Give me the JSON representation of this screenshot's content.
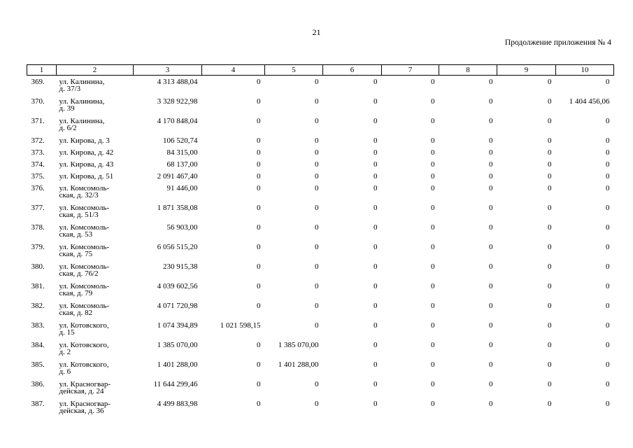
{
  "page": {
    "number": "21",
    "note": "Продолжение приложения № 4"
  },
  "table": {
    "headers": [
      "1",
      "2",
      "3",
      "4",
      "5",
      "6",
      "7",
      "8",
      "9",
      "10"
    ],
    "rows": [
      {
        "n": "369.",
        "addr": [
          "ул. Калинина,",
          "д. 37/3"
        ],
        "v": [
          "4 313 488,04",
          "0",
          "0",
          "0",
          "0",
          "0",
          "0",
          "0"
        ]
      },
      {
        "n": "370.",
        "addr": [
          "ул. Калинина,",
          "д. 39"
        ],
        "v": [
          "3 328 922,98",
          "0",
          "0",
          "0",
          "0",
          "0",
          "0",
          "1 404 456,06"
        ]
      },
      {
        "n": "371.",
        "addr": [
          "ул. Калинина,",
          "д. 6/2"
        ],
        "v": [
          "4 170 848,04",
          "0",
          "0",
          "0",
          "0",
          "0",
          "0",
          "0"
        ]
      },
      {
        "n": "372.",
        "addr": [
          "ул. Кирова, д. 3"
        ],
        "v": [
          "106 520,74",
          "0",
          "0",
          "0",
          "0",
          "0",
          "0",
          "0"
        ]
      },
      {
        "n": "373.",
        "addr": [
          "ул. Кирова, д. 42"
        ],
        "v": [
          "84 315,00",
          "0",
          "0",
          "0",
          "0",
          "0",
          "0",
          "0"
        ]
      },
      {
        "n": "374.",
        "addr": [
          "ул. Кирова, д. 43"
        ],
        "v": [
          "68 137,00",
          "0",
          "0",
          "0",
          "0",
          "0",
          "0",
          "0"
        ]
      },
      {
        "n": "375.",
        "addr": [
          "ул. Кирова, д. 51"
        ],
        "v": [
          "2 091 467,40",
          "0",
          "0",
          "0",
          "0",
          "0",
          "0",
          "0"
        ]
      },
      {
        "n": "376.",
        "addr": [
          "ул. Комсомоль-",
          "ская, д. 32/3"
        ],
        "v": [
          "91 446,00",
          "0",
          "0",
          "0",
          "0",
          "0",
          "0",
          "0"
        ]
      },
      {
        "n": "377.",
        "addr": [
          "ул. Комсомоль-",
          "ская, д. 51/3"
        ],
        "v": [
          "1 871 358,08",
          "0",
          "0",
          "0",
          "0",
          "0",
          "0",
          "0"
        ]
      },
      {
        "n": "378.",
        "addr": [
          "ул. Комсомоль-",
          "ская, д. 53"
        ],
        "v": [
          "56 903,00",
          "0",
          "0",
          "0",
          "0",
          "0",
          "0",
          "0"
        ]
      },
      {
        "n": "379.",
        "addr": [
          "ул. Комсомоль-",
          "ская, д. 75"
        ],
        "v": [
          "6 056 515,20",
          "0",
          "0",
          "0",
          "0",
          "0",
          "0",
          "0"
        ]
      },
      {
        "n": "380.",
        "addr": [
          "ул. Комсомоль-",
          "ская, д. 76/2"
        ],
        "v": [
          "230 915,38",
          "0",
          "0",
          "0",
          "0",
          "0",
          "0",
          "0"
        ]
      },
      {
        "n": "381.",
        "addr": [
          "ул. Комсомоль-",
          "ская, д. 79"
        ],
        "v": [
          "4 039 602,56",
          "0",
          "0",
          "0",
          "0",
          "0",
          "0",
          "0"
        ]
      },
      {
        "n": "382.",
        "addr": [
          "ул. Комсомоль-",
          "ская, д. 82"
        ],
        "v": [
          "4 071 720,98",
          "0",
          "0",
          "0",
          "0",
          "0",
          "0",
          "0"
        ]
      },
      {
        "n": "383.",
        "addr": [
          "ул. Котовского,",
          "д. 15"
        ],
        "v": [
          "1 074 394,89",
          "1 021 598,15",
          "0",
          "0",
          "0",
          "0",
          "0",
          "0"
        ]
      },
      {
        "n": "384.",
        "addr": [
          "ул. Котовского,",
          "д. 2"
        ],
        "v": [
          "1 385 070,00",
          "0",
          "1 385 070,00",
          "0",
          "0",
          "0",
          "0",
          "0"
        ]
      },
      {
        "n": "385.",
        "addr": [
          "ул. Котовского,",
          "д. 6"
        ],
        "v": [
          "1 401 288,00",
          "0",
          "1 401 288,00",
          "0",
          "0",
          "0",
          "0",
          "0"
        ]
      },
      {
        "n": "386.",
        "addr": [
          "ул. Красногвар-",
          "дейская, д. 24"
        ],
        "v": [
          "11 644 299,46",
          "0",
          "0",
          "0",
          "0",
          "0",
          "0",
          "0"
        ]
      },
      {
        "n": "387.",
        "addr": [
          "ул. Красногвар-",
          "дейская, д. 36"
        ],
        "v": [
          "4 499 883,98",
          "0",
          "0",
          "0",
          "0",
          "0",
          "0",
          "0"
        ]
      }
    ]
  }
}
